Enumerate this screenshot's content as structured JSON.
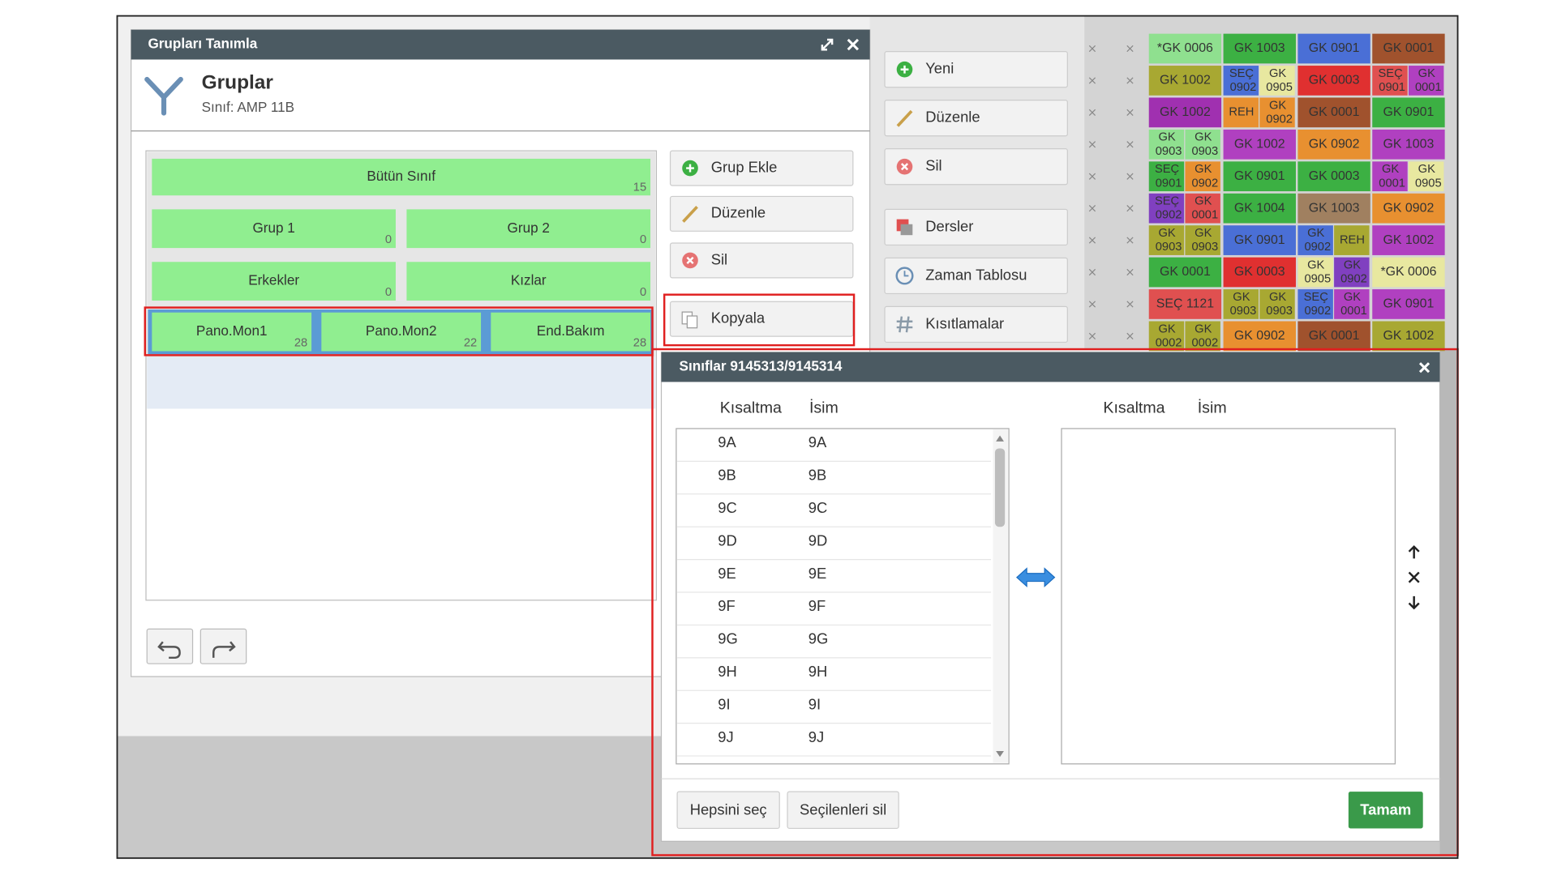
{
  "dialog_groups": {
    "title": "Grupları Tanımla",
    "heading": "Gruplar",
    "subheading": "Sınıf: AMP 11B",
    "group_rows": [
      [
        {
          "name": "Bütün Sınıf",
          "count": 15
        }
      ],
      [
        {
          "name": "Grup 1",
          "count": 0
        },
        {
          "name": "Grup 2",
          "count": 0
        }
      ],
      [
        {
          "name": "Erkekler",
          "count": 0
        },
        {
          "name": "Kızlar",
          "count": 0
        }
      ],
      [
        {
          "name": "Pano.Mon1",
          "count": 28
        },
        {
          "name": "Pano.Mon2",
          "count": 22
        },
        {
          "name": "End.Bakım",
          "count": 28
        }
      ]
    ],
    "buttons": [
      "Grup Ekle",
      "Düzenle",
      "Sil",
      "Kopyala"
    ]
  },
  "toolbar": [
    "Yeni",
    "Düzenle",
    "Sil",
    "Dersler",
    "Zaman Tablosu",
    "Kısıtlamalar"
  ],
  "timetable": {
    "rows": [
      [
        {
          "label": "*GK 0006",
          "color": "#8fe08f"
        },
        {
          "label": "GK 1003",
          "color": "#3cb043"
        },
        {
          "label": "GK 0901",
          "color": "#4a6fd6"
        },
        {
          "label": "GK 0001",
          "color": "#a0522d"
        }
      ],
      [
        {
          "label": "GK 1002",
          "color": "#a8a832"
        },
        {
          "parts": [
            {
              "label": "SEÇ 0902",
              "color": "#4a6fd6"
            },
            {
              "label": "GK 0905",
              "color": "#e8e8a0"
            }
          ]
        },
        {
          "label": "GK 0003",
          "color": "#e03030"
        },
        {
          "parts": [
            {
              "label": "SEÇ 0901",
              "color": "#e05050"
            },
            {
              "label": "GK 0001",
              "color": "#b040c0"
            }
          ]
        }
      ],
      [
        {
          "label": "GK 1002",
          "color": "#a030b0"
        },
        {
          "parts": [
            {
              "label": "REH",
              "color": "#e89030"
            },
            {
              "label": "GK 0902",
              "color": "#e89030"
            }
          ]
        },
        {
          "label": "GK 0001",
          "color": "#a0522d"
        },
        {
          "label": "GK 0901",
          "color": "#3cb043"
        }
      ],
      [
        {
          "parts": [
            {
              "label": "GK 0903",
              "color": "#8fe08f"
            },
            {
              "label": "GK 0903",
              "color": "#8fe08f"
            }
          ]
        },
        {
          "label": "GK 1002",
          "color": "#b040c0"
        },
        {
          "label": "GK 0902",
          "color": "#e89030"
        },
        {
          "label": "GK 1003",
          "color": "#b040c0"
        }
      ],
      [
        {
          "parts": [
            {
              "label": "SEÇ 0901",
              "color": "#3cb043"
            },
            {
              "label": "GK 0902",
              "color": "#e89030"
            }
          ]
        },
        {
          "label": "GK 0901",
          "color": "#3cb043"
        },
        {
          "label": "GK 0003",
          "color": "#3cb043"
        },
        {
          "parts": [
            {
              "label": "GK 0001",
              "color": "#b040c0"
            },
            {
              "label": "GK 0905",
              "color": "#e8e8a0"
            }
          ]
        }
      ],
      [
        {
          "parts": [
            {
              "label": "SEÇ 0902",
              "color": "#8040c0"
            },
            {
              "label": "GK 0001",
              "color": "#e05050"
            }
          ]
        },
        {
          "label": "GK 1004",
          "color": "#3cb043"
        },
        {
          "label": "GK 1003",
          "color": "#a08060"
        },
        {
          "label": "GK 0902",
          "color": "#e89030"
        }
      ],
      [
        {
          "parts": [
            {
              "label": "GK 0903",
              "color": "#a8a832"
            },
            {
              "label": "GK 0903",
              "color": "#a8a832"
            }
          ]
        },
        {
          "label": "GK 0901",
          "color": "#4a6fd6"
        },
        {
          "parts": [
            {
              "label": "GK 0902",
              "color": "#4a6fd6"
            },
            {
              "label": "REH",
              "color": "#a8a832"
            }
          ]
        },
        {
          "label": "GK 1002",
          "color": "#b040c0"
        }
      ],
      [
        {
          "label": "GK 0001",
          "color": "#3cb043"
        },
        {
          "label": "GK 0003",
          "color": "#e03030"
        },
        {
          "parts": [
            {
              "label": "GK 0905",
              "color": "#e8e8a0"
            },
            {
              "label": "GK 0902",
              "color": "#8040c0"
            }
          ]
        },
        {
          "label": "*GK 0006",
          "color": "#e8e8a0"
        }
      ],
      [
        {
          "label": "SEÇ 1121",
          "color": "#e05050"
        },
        {
          "parts": [
            {
              "label": "GK 0903",
              "color": "#a8a832"
            },
            {
              "label": "GK 0903",
              "color": "#a8a832"
            }
          ]
        },
        {
          "parts": [
            {
              "label": "SEÇ 0902",
              "color": "#4a6fd6"
            },
            {
              "label": "GK 0001",
              "color": "#b040c0"
            }
          ]
        },
        {
          "label": "GK 0901",
          "color": "#b040c0"
        }
      ],
      [
        {
          "parts": [
            {
              "label": "GK 0002",
              "color": "#a8a832"
            },
            {
              "label": "GK 0002",
              "color": "#a8a832"
            }
          ]
        },
        {
          "label": "GK 0902",
          "color": "#e89030"
        },
        {
          "label": "GK 0001",
          "color": "#a0522d"
        },
        {
          "label": "GK 1002",
          "color": "#a8a832"
        }
      ]
    ]
  },
  "dialog_classes": {
    "title": "Sınıflar 9145313/9145314",
    "columns": [
      "Kısaltma",
      "İsim"
    ],
    "available": [
      {
        "abbr": "9A",
        "name": "9A"
      },
      {
        "abbr": "9B",
        "name": "9B"
      },
      {
        "abbr": "9C",
        "name": "9C"
      },
      {
        "abbr": "9D",
        "name": "9D"
      },
      {
        "abbr": "9E",
        "name": "9E"
      },
      {
        "abbr": "9F",
        "name": "9F"
      },
      {
        "abbr": "9G",
        "name": "9G"
      },
      {
        "abbr": "9H",
        "name": "9H"
      },
      {
        "abbr": "9I",
        "name": "9I"
      },
      {
        "abbr": "9J",
        "name": "9J"
      }
    ],
    "selected_columns": [
      "Kısaltma",
      "İsim"
    ],
    "buttons": [
      "Hepsini seç",
      "Seçilenleri sil"
    ],
    "confirm": "Tamam"
  }
}
